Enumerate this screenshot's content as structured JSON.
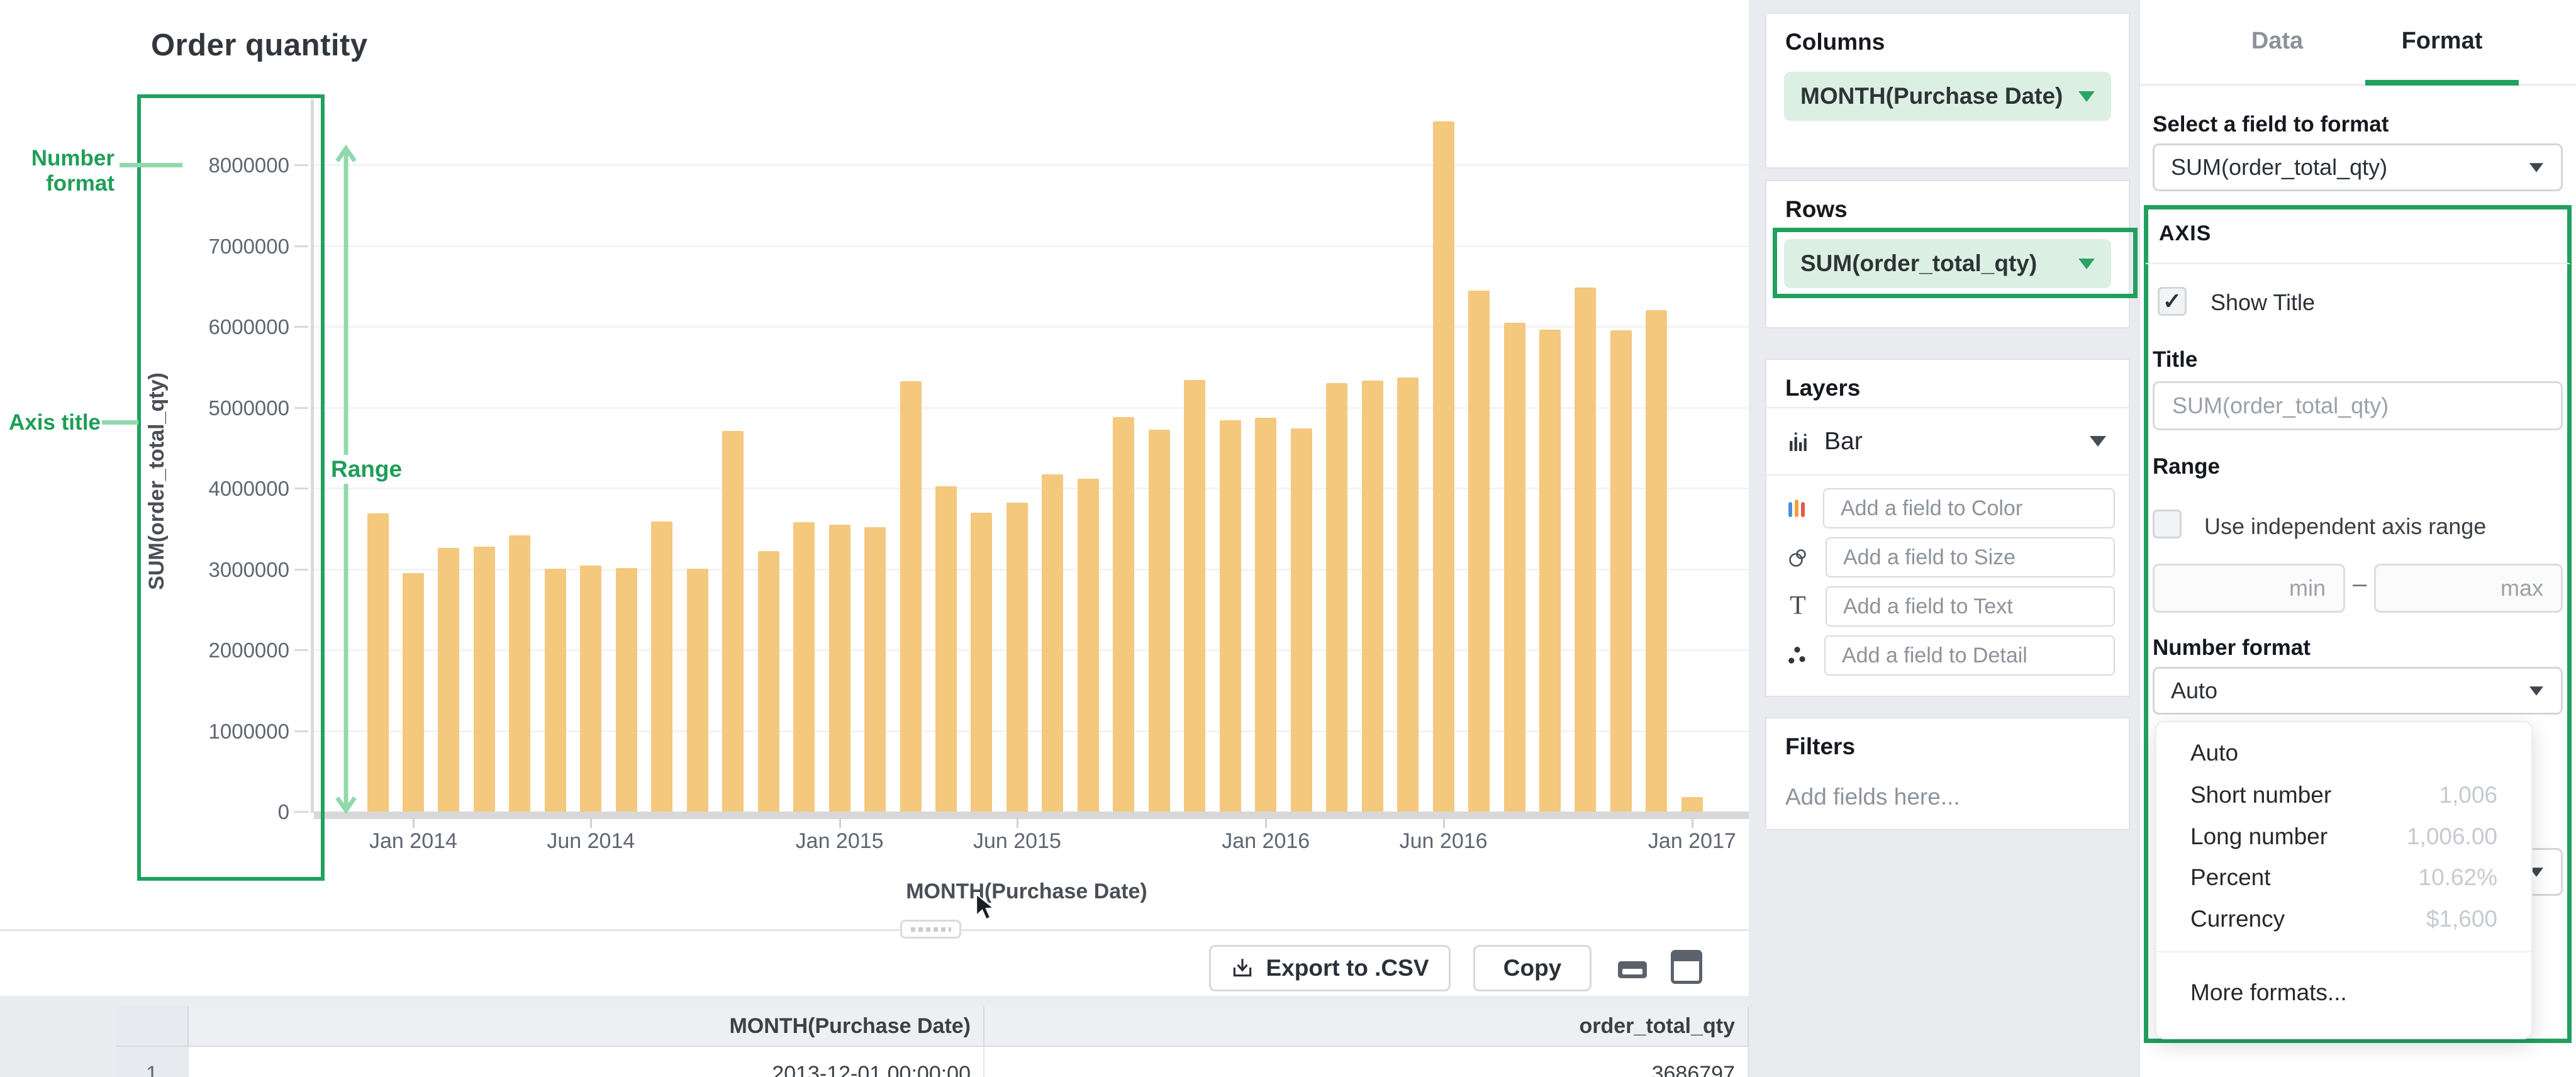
{
  "chart_data": {
    "type": "bar",
    "title": "Order quantity",
    "xlabel": "MONTH(Purchase Date)",
    "ylabel": "SUM(order_total_qty)",
    "ylim": [
      0,
      8600000
    ],
    "grid": true,
    "x": [
      "Dec 2013",
      "Jan 2014",
      "Feb 2014",
      "Mar 2014",
      "Apr 2014",
      "May 2014",
      "Jun 2014",
      "Jul 2014",
      "Aug 2014",
      "Sep 2014",
      "Oct 2014",
      "Nov 2014",
      "Dec 2014",
      "Jan 2015",
      "Feb 2015",
      "Mar 2015",
      "Apr 2015",
      "May 2015",
      "Jun 2015",
      "Jul 2015",
      "Aug 2015",
      "Sep 2015",
      "Oct 2015",
      "Nov 2015",
      "Dec 2015",
      "Jan 2016",
      "Feb 2016",
      "Mar 2016",
      "Apr 2016",
      "May 2016",
      "Jun 2016",
      "Jul 2016",
      "Aug 2016",
      "Sep 2016",
      "Oct 2016",
      "Nov 2016",
      "Dec 2016",
      "Jan 2017"
    ],
    "values": [
      3686797,
      2950000,
      3260000,
      3280000,
      3420000,
      3000000,
      3040000,
      3010000,
      3590000,
      3000000,
      4710000,
      3220000,
      3580000,
      3550000,
      3520000,
      5320000,
      4020000,
      3700000,
      3820000,
      4170000,
      4120000,
      4880000,
      4720000,
      5340000,
      4840000,
      4870000,
      4740000,
      5300000,
      5330000,
      5370000,
      8540000,
      6440000,
      6050000,
      5960000,
      6480000,
      5950000,
      6200000,
      180000
    ]
  },
  "chart": {
    "title": "Order quantity",
    "y_axis_title": "SUM(order_total_qty)",
    "x_axis_title": "MONTH(Purchase Date)",
    "y_ticks": [
      "8000000",
      "7000000",
      "6000000",
      "5000000",
      "4000000",
      "3000000",
      "2000000",
      "1000000",
      "0"
    ],
    "x_ticks": [
      {
        "label": "Jan 2014",
        "i": 1
      },
      {
        "label": "Jun 2014",
        "i": 6
      },
      {
        "label": "Jan 2015",
        "i": 13
      },
      {
        "label": "Jun 2015",
        "i": 18
      },
      {
        "label": "Jan 2016",
        "i": 25
      },
      {
        "label": "Jun 2016",
        "i": 30
      },
      {
        "label": "Jan 2017",
        "i": 37
      }
    ]
  },
  "annotations": {
    "number_format": "Number format",
    "axis_title": "Axis title",
    "range": "Range"
  },
  "shelf": {
    "columns": {
      "label": "Columns",
      "pill": "MONTH(Purchase Date)"
    },
    "rows": {
      "label": "Rows",
      "pill": "SUM(order_total_qty)"
    },
    "layers": {
      "label": "Layers",
      "type": "Bar",
      "color_placeholder": "Add a field to Color",
      "size_placeholder": "Add a field to Size",
      "text_placeholder": "Add a field to Text",
      "detail_placeholder": "Add a field to Detail"
    },
    "filters": {
      "label": "Filters",
      "placeholder": "Add fields here..."
    }
  },
  "toolbar": {
    "export_label": "Export to .CSV",
    "copy_label": "Copy"
  },
  "table": {
    "headers": [
      "MONTH(Purchase Date)",
      "order_total_qty"
    ],
    "rows": [
      {
        "n": "1",
        "date": "2013-12-01 00:00:00",
        "qty": "3686797"
      }
    ]
  },
  "format_panel": {
    "tabs": {
      "data": "Data",
      "format": "Format"
    },
    "active_tab": "Format",
    "field_select_label": "Select a field to format",
    "field_select_value": "SUM(order_total_qty)",
    "section_title": "AXIS",
    "show_title_label": "Show Title",
    "show_title_checked": true,
    "title_label": "Title",
    "title_placeholder": "SUM(order_total_qty)",
    "range_label": "Range",
    "independent_range_label": "Use independent axis range",
    "independent_range_checked": false,
    "min_placeholder": "min",
    "max_placeholder": "max",
    "range_dash": "–",
    "number_format_label": "Number format",
    "number_format_value": "Auto",
    "menu": {
      "options": [
        {
          "label": "Auto",
          "example": ""
        },
        {
          "label": "Short number",
          "example": "1,006"
        },
        {
          "label": "Long number",
          "example": "1,006.00"
        },
        {
          "label": "Percent",
          "example": "10.62%"
        },
        {
          "label": "Currency",
          "example": "$1,600"
        }
      ],
      "footer": "More formats..."
    }
  },
  "colors": {
    "bar": "#f4c87d",
    "accent_green": "#22a060",
    "annotation_green": "#1f9e58",
    "light_green": "#90d9ae",
    "pill_bg": "#dcefe3"
  }
}
